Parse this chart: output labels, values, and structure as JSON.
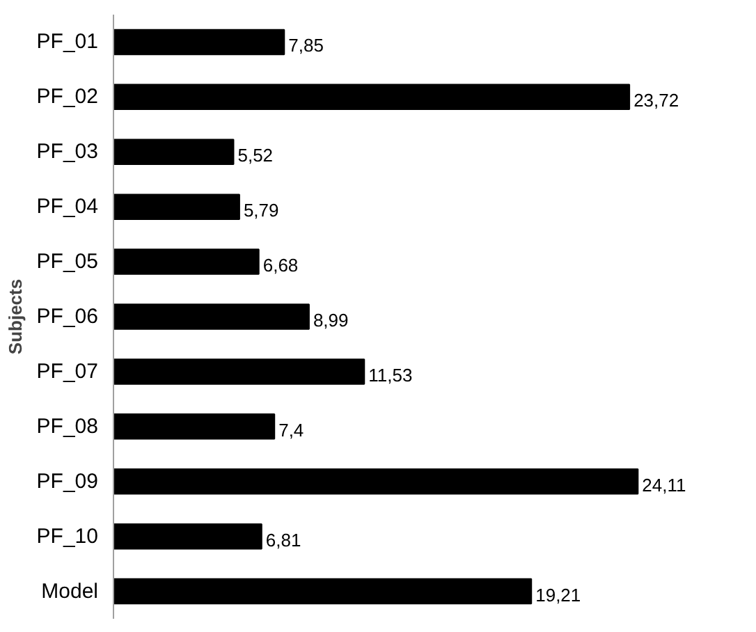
{
  "chart_data": {
    "type": "bar",
    "orientation": "horizontal",
    "ylabel": "Subjects",
    "categories": [
      "PF_01",
      "PF_02",
      "PF_03",
      "PF_04",
      "PF_05",
      "PF_06",
      "PF_07",
      "PF_08",
      "PF_09",
      "PF_10",
      "Model"
    ],
    "values": [
      7.85,
      23.72,
      5.52,
      5.79,
      6.68,
      8.99,
      11.53,
      7.4,
      24.11,
      6.81,
      19.21
    ],
    "value_labels": [
      "7,85",
      "23,72",
      "5,52",
      "5,79",
      "6,68",
      "8,99",
      "11,53",
      "7,4",
      "24,11",
      "6,81",
      "19,21"
    ],
    "color": "#000000",
    "grid": false
  }
}
